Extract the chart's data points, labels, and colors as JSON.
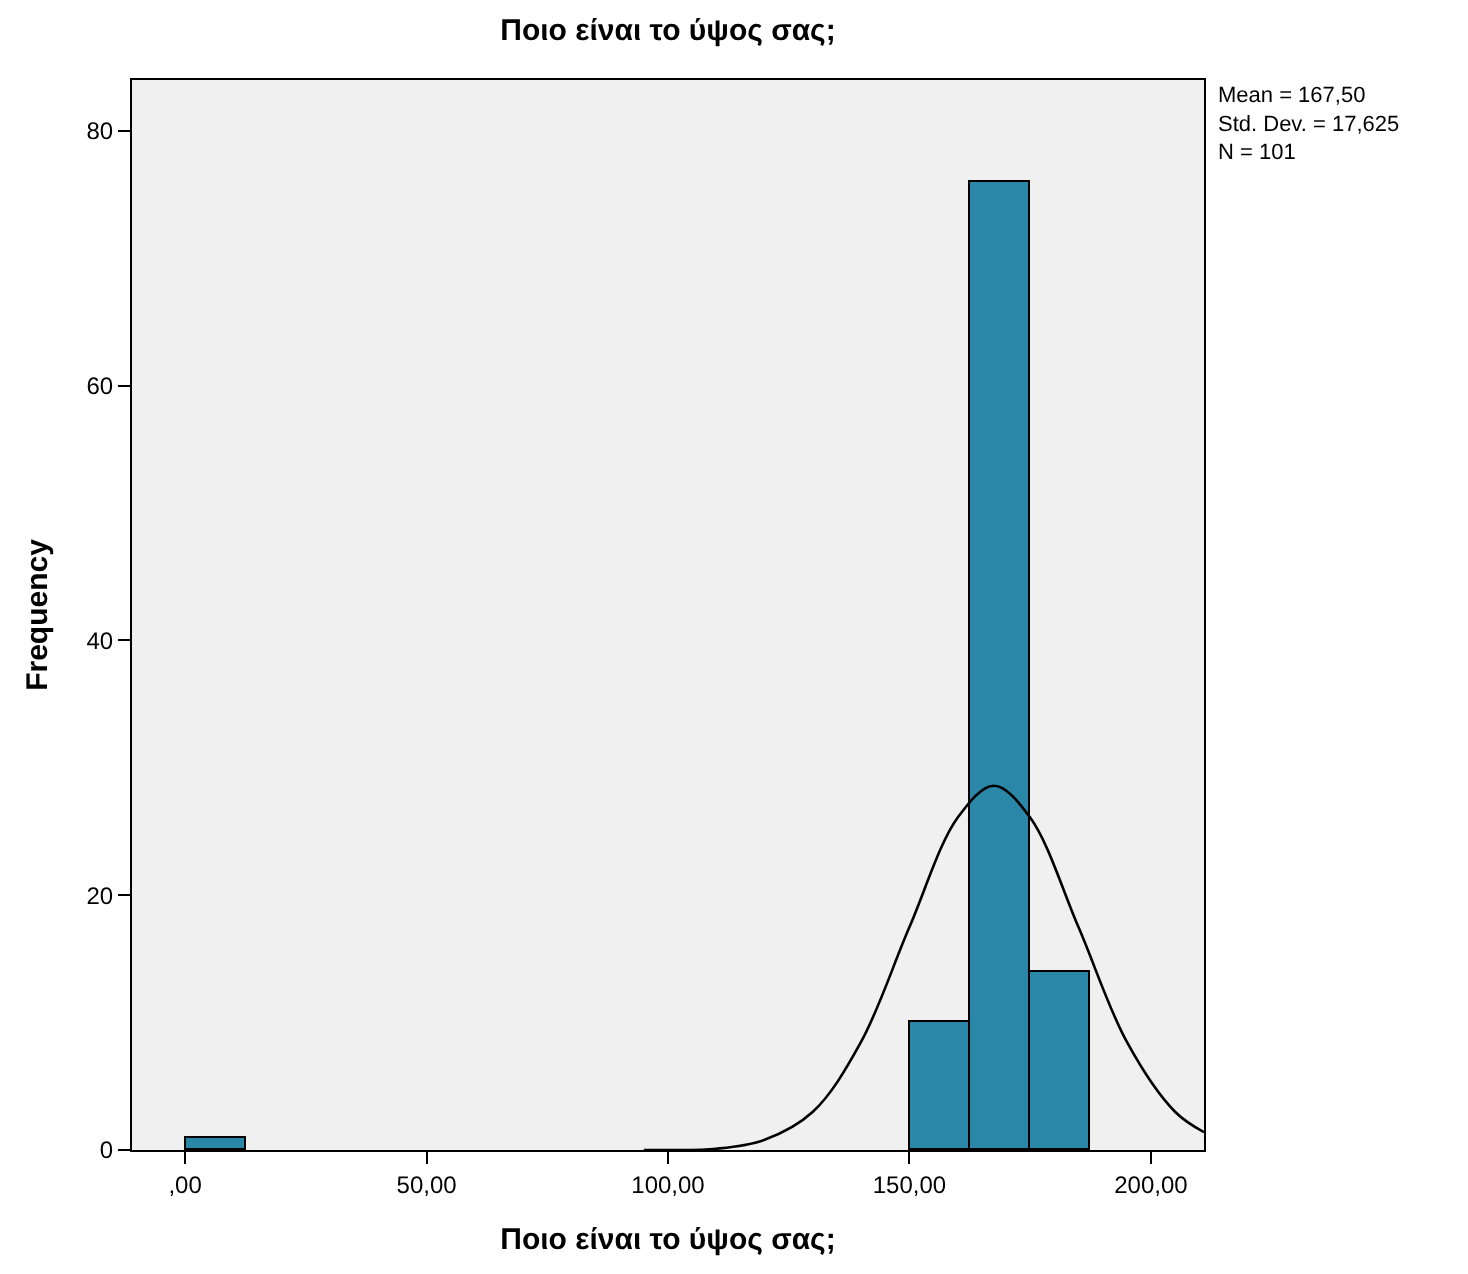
{
  "chart_data": {
    "type": "histogram",
    "title": "Ποιο είναι το ύψος σας;",
    "xlabel": "Ποιο είναι το ύψος σας;",
    "ylabel": "Frequency",
    "bins": [
      0,
      12.5,
      25,
      37.5,
      50,
      62.5,
      75,
      87.5,
      100,
      112.5,
      125,
      137.5,
      150,
      162.5,
      175,
      187.5
    ],
    "values": [
      1,
      0,
      0,
      0,
      0,
      0,
      0,
      0,
      0,
      0,
      0,
      0,
      10,
      76,
      14
    ],
    "color": "#2a87a8",
    "series": [
      {
        "type": "line",
        "color": "#000000",
        "x": [
          95,
          100,
          110,
          120,
          130,
          140,
          150,
          160,
          167.5,
          175,
          185,
          195,
          205,
          211
        ],
        "values": [
          0,
          0,
          0.1,
          0.8,
          3,
          8.5,
          17.5,
          26.1,
          28.6,
          26.1,
          17.5,
          8.5,
          3,
          1.4
        ]
      }
    ],
    "xlim": [
      -11,
      211
    ],
    "xticks": [
      {
        "value": 0,
        "label": ",00"
      },
      {
        "value": 50,
        "label": "50,00"
      },
      {
        "value": 100,
        "label": "100,00"
      },
      {
        "value": 150,
        "label": "150,00"
      },
      {
        "value": 200,
        "label": "200,00"
      }
    ],
    "ylim": [
      0,
      84
    ],
    "yticks": [
      0,
      20,
      40,
      60,
      80
    ],
    "grid": false,
    "annotations": [
      "Mean = 167,50",
      "Std. Dev. = 17,625",
      "N = 101"
    ]
  }
}
